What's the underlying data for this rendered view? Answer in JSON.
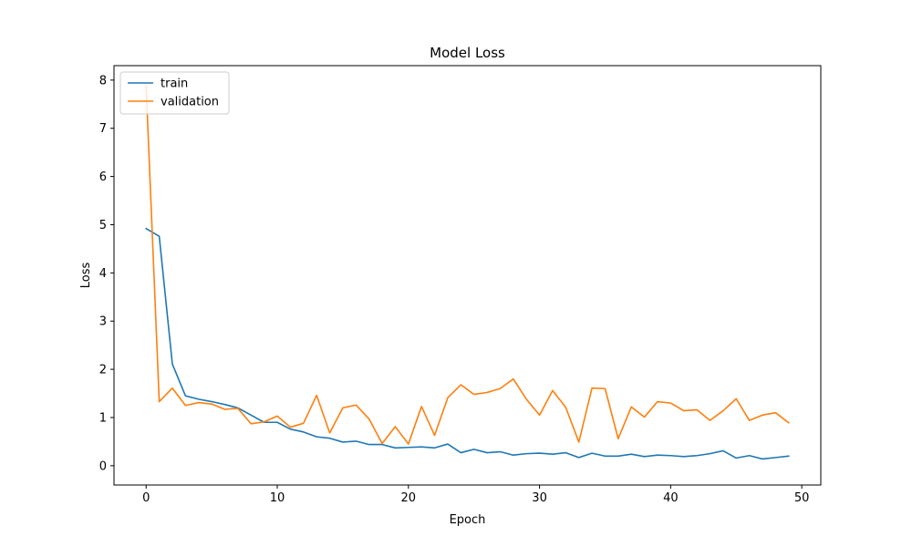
{
  "chart_data": {
    "type": "line",
    "title": "Model Loss",
    "xlabel": "Epoch",
    "ylabel": "Loss",
    "xlim": [
      -2.45,
      51.45
    ],
    "ylim": [
      -0.4,
      8.3
    ],
    "xticks": [
      0,
      10,
      20,
      30,
      40,
      50
    ],
    "yticks": [
      0,
      1,
      2,
      3,
      4,
      5,
      6,
      7,
      8
    ],
    "grid": false,
    "legend_position": "upper left",
    "x": [
      0,
      1,
      2,
      3,
      4,
      5,
      6,
      7,
      8,
      9,
      10,
      11,
      12,
      13,
      14,
      15,
      16,
      17,
      18,
      19,
      20,
      21,
      22,
      23,
      24,
      25,
      26,
      27,
      28,
      29,
      30,
      31,
      32,
      33,
      34,
      35,
      36,
      37,
      38,
      39,
      40,
      41,
      42,
      43,
      44,
      45,
      46,
      47,
      48,
      49
    ],
    "series": [
      {
        "name": "train",
        "color": "#1f77b4",
        "values": [
          4.92,
          4.76,
          2.11,
          1.45,
          1.38,
          1.33,
          1.27,
          1.2,
          1.05,
          0.9,
          0.9,
          0.76,
          0.7,
          0.6,
          0.57,
          0.49,
          0.51,
          0.44,
          0.44,
          0.37,
          0.38,
          0.39,
          0.37,
          0.45,
          0.27,
          0.34,
          0.27,
          0.29,
          0.22,
          0.25,
          0.26,
          0.24,
          0.27,
          0.17,
          0.26,
          0.2,
          0.2,
          0.24,
          0.19,
          0.22,
          0.21,
          0.19,
          0.21,
          0.25,
          0.31,
          0.16,
          0.21,
          0.14,
          0.17,
          0.2
        ]
      },
      {
        "name": "validation",
        "color": "#ff7f0e",
        "values": [
          7.88,
          1.33,
          1.61,
          1.25,
          1.31,
          1.28,
          1.17,
          1.19,
          0.87,
          0.91,
          1.03,
          0.8,
          0.88,
          1.46,
          0.68,
          1.2,
          1.26,
          0.97,
          0.46,
          0.81,
          0.45,
          1.23,
          0.63,
          1.41,
          1.68,
          1.48,
          1.52,
          1.6,
          1.8,
          1.38,
          1.05,
          1.56,
          1.21,
          0.49,
          1.61,
          1.6,
          0.56,
          1.22,
          1.01,
          1.33,
          1.3,
          1.14,
          1.16,
          0.94,
          1.14,
          1.39,
          0.94,
          1.05,
          1.1,
          0.89
        ]
      }
    ]
  }
}
